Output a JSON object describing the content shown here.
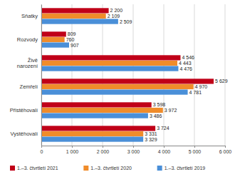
{
  "chart_data": {
    "type": "bar",
    "orientation": "horizontal",
    "categories": [
      "Sňatky",
      "Rozvody",
      "Živě narození",
      "Zemřelí",
      "Přistěhovalí",
      "Vystěhovalí"
    ],
    "series": [
      {
        "name": "1.–3. čtvrtletí 2021",
        "color": "#c00018",
        "values": [
          2200,
          809,
          4546,
          5629,
          3598,
          3724
        ],
        "value_labels": [
          "2 200",
          "809",
          "4 546",
          "5 629",
          "3 598",
          "3 724"
        ]
      },
      {
        "name": "1.–3. čtvrtletí 2020",
        "color": "#f08c2a",
        "values": [
          2109,
          760,
          4443,
          4970,
          3972,
          3331
        ],
        "value_labels": [
          "2 109",
          "760",
          "4 443",
          "4 970",
          "3 972",
          "3 331"
        ]
      },
      {
        "name": "1.–3. čtvrtletí 2019",
        "color": "#4a8fd8",
        "values": [
          2509,
          907,
          4476,
          4781,
          3486,
          3329
        ],
        "value_labels": [
          "2 509",
          "907",
          "4 476",
          "4 781",
          "3 486",
          "3 329"
        ]
      }
    ],
    "xlim": [
      0,
      6000
    ],
    "xticks": [
      0,
      {
        "value": 1000,
        "label": "1 000"
      },
      {
        "value": 2000,
        "label": "2 000"
      },
      {
        "value": 3000,
        "label": "3 000"
      },
      {
        "value": 4000,
        "label": "4 000"
      },
      {
        "value": 5000,
        "label": "5 000"
      },
      {
        "value": 6000,
        "label": "6 000"
      }
    ],
    "grid": true,
    "data_labels": true,
    "legend": "bottom"
  }
}
